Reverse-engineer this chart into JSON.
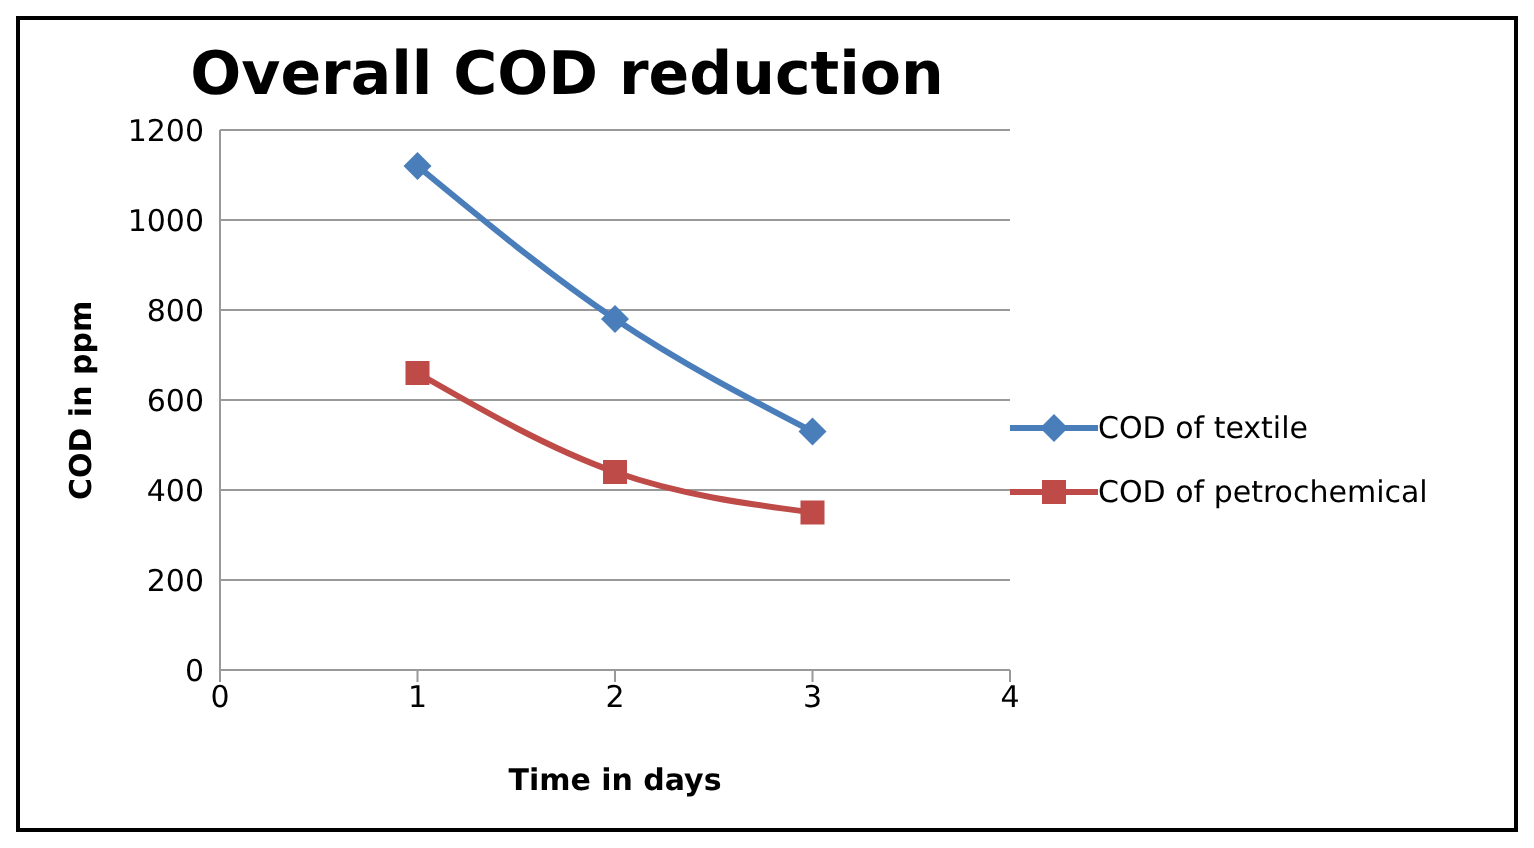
{
  "chart_data": {
    "type": "line",
    "title": "Overall COD reduction",
    "xlabel": "Time in days",
    "ylabel": "COD in ppm",
    "x": [
      1,
      2,
      3
    ],
    "series": [
      {
        "name": "COD of textile",
        "color": "#4a7ebb",
        "values": [
          1120,
          780,
          530
        ],
        "marker": "diamond"
      },
      {
        "name": "COD of petrochemical",
        "color": "#be4b48",
        "values": [
          660,
          440,
          350
        ],
        "marker": "square"
      }
    ],
    "xlim": [
      0,
      4
    ],
    "xticks": [
      0,
      1,
      2,
      3,
      4
    ],
    "ylim": [
      0,
      1200
    ],
    "yticks": [
      0,
      200,
      400,
      600,
      800,
      1000,
      1200
    ],
    "grid": "y",
    "legend": "right",
    "line_style": "solid"
  }
}
